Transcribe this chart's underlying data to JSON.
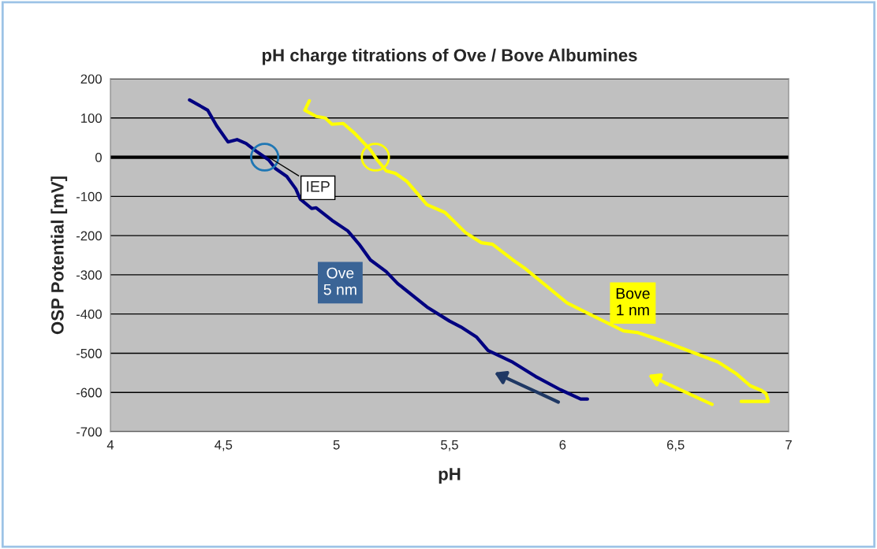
{
  "chart_data": {
    "type": "line",
    "title": "pH charge titrations of Ove / Bove Albumines",
    "xlabel": "pH",
    "ylabel": "OSP Potential [mV]",
    "series": [
      {
        "name": "Ove\n5 nm",
        "color": "#000080",
        "x": [
          4.35,
          4.43,
          4.47,
          4.52,
          4.56,
          4.6,
          4.65,
          4.7,
          4.73,
          4.78,
          4.82,
          4.84,
          4.89,
          4.91,
          4.98,
          5.05,
          5.1,
          5.15,
          5.22,
          5.27,
          5.4,
          5.5,
          5.55,
          5.62,
          5.67,
          5.78,
          5.88,
          5.99,
          6.08,
          6.11
        ],
        "values": [
          146,
          120,
          80,
          39,
          45,
          35,
          13,
          -7,
          -29,
          -49,
          -81,
          -107,
          -131,
          -129,
          -161,
          -188,
          -222,
          -262,
          -292,
          -322,
          -382,
          -418,
          -433,
          -459,
          -493,
          -523,
          -559,
          -593,
          -617,
          -617
        ]
      },
      {
        "name": "Bove\n1 nm",
        "color": "#ffff00",
        "x": [
          4.88,
          4.86,
          4.91,
          4.95,
          4.98,
          5.03,
          5.08,
          5.15,
          5.18,
          5.2,
          5.22,
          5.26,
          5.31,
          5.4,
          5.48,
          5.57,
          5.64,
          5.69,
          5.78,
          5.83,
          6.02,
          6.16,
          6.27,
          6.33,
          6.44,
          6.49,
          6.6,
          6.69,
          6.77,
          6.83,
          6.88,
          6.9,
          6.91,
          6.79
        ],
        "values": [
          144,
          120,
          104,
          100,
          84,
          86,
          61,
          19,
          -7,
          -21,
          -35,
          -41,
          -61,
          -121,
          -141,
          -192,
          -218,
          -222,
          -262,
          -282,
          -372,
          -412,
          -443,
          -447,
          -468,
          -479,
          -503,
          -523,
          -553,
          -583,
          -595,
          -603,
          -623,
          -623
        ]
      }
    ],
    "xlim": [
      4,
      7
    ],
    "xticks": [
      4,
      {
        "value": 4.5,
        "label": "4,5"
      },
      5,
      {
        "value": 5.5,
        "label": "5,5"
      },
      6,
      {
        "value": 6.5,
        "label": "6,5"
      },
      7
    ],
    "ylim": [
      -700,
      200
    ],
    "yticks": [
      -700,
      -600,
      -500,
      -400,
      -300,
      -200,
      -100,
      0,
      100,
      200
    ],
    "grid": "y",
    "legend": false,
    "ref_lines": [
      {
        "axis": "y",
        "value": 0,
        "color": "#000000"
      }
    ],
    "annotations": [
      {
        "text": "IEP",
        "x": 4.7,
        "y": 0
      }
    ]
  }
}
